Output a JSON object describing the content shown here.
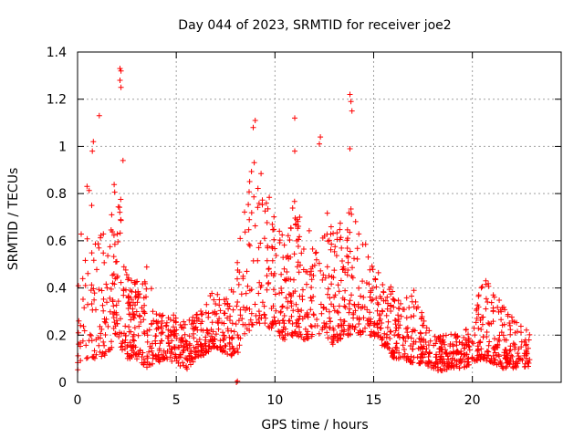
{
  "chart_data": {
    "type": "scatter",
    "title": "Day 044 of 2023, SRMTID for receiver joe2",
    "xlabel": "GPS time / hours",
    "ylabel": "SRMTID / TECUs",
    "xlim": [
      0,
      24.5
    ],
    "ylim": [
      0,
      1.4
    ],
    "xticks": [
      0,
      5,
      10,
      15,
      20
    ],
    "yticks": [
      0,
      0.2,
      0.4,
      0.6,
      0.8,
      1,
      1.2,
      1.4
    ],
    "ytick_labels": [
      "0",
      "0.2",
      "0.4",
      "0.6",
      "0.8",
      "1",
      "1.2",
      "1.4"
    ],
    "grid": true,
    "marker": "+",
    "color": "#ff0000",
    "envelope": [
      [
        0.0,
        0.05,
        0.62
      ],
      [
        0.5,
        0.1,
        0.9
      ],
      [
        1.0,
        0.1,
        0.75
      ],
      [
        1.5,
        0.12,
        0.6
      ],
      [
        2.0,
        0.18,
        0.95
      ],
      [
        2.5,
        0.1,
        0.5
      ],
      [
        3.0,
        0.1,
        0.45
      ],
      [
        3.5,
        0.06,
        0.5
      ],
      [
        4.0,
        0.08,
        0.35
      ],
      [
        4.5,
        0.1,
        0.3
      ],
      [
        5.0,
        0.08,
        0.28
      ],
      [
        5.5,
        0.05,
        0.25
      ],
      [
        6.0,
        0.1,
        0.3
      ],
      [
        6.5,
        0.12,
        0.35
      ],
      [
        7.0,
        0.15,
        0.4
      ],
      [
        7.5,
        0.12,
        0.35
      ],
      [
        8.0,
        0.1,
        0.45
      ],
      [
        8.5,
        0.2,
        0.8
      ],
      [
        9.0,
        0.25,
        1.0
      ],
      [
        9.5,
        0.25,
        0.85
      ],
      [
        10.0,
        0.2,
        0.7
      ],
      [
        10.5,
        0.18,
        0.6
      ],
      [
        11.0,
        0.2,
        0.8
      ],
      [
        11.5,
        0.18,
        0.6
      ],
      [
        12.0,
        0.2,
        0.7
      ],
      [
        12.5,
        0.2,
        0.75
      ],
      [
        13.0,
        0.15,
        0.65
      ],
      [
        13.5,
        0.2,
        0.7
      ],
      [
        14.0,
        0.2,
        0.75
      ],
      [
        14.5,
        0.2,
        0.65
      ],
      [
        15.0,
        0.2,
        0.5
      ],
      [
        15.5,
        0.15,
        0.45
      ],
      [
        16.0,
        0.1,
        0.4
      ],
      [
        16.5,
        0.1,
        0.35
      ],
      [
        17.0,
        0.08,
        0.4
      ],
      [
        17.5,
        0.08,
        0.3
      ],
      [
        18.0,
        0.05,
        0.2
      ],
      [
        18.5,
        0.05,
        0.2
      ],
      [
        19.0,
        0.06,
        0.22
      ],
      [
        19.5,
        0.06,
        0.22
      ],
      [
        20.0,
        0.08,
        0.25
      ],
      [
        20.5,
        0.1,
        0.45
      ],
      [
        21.0,
        0.08,
        0.4
      ],
      [
        21.5,
        0.06,
        0.35
      ],
      [
        22.0,
        0.06,
        0.3
      ],
      [
        22.5,
        0.06,
        0.25
      ],
      [
        22.9,
        0.06,
        0.22
      ]
    ],
    "annotated_points": [
      [
        2.15,
        1.33
      ],
      [
        2.2,
        1.32
      ],
      [
        2.15,
        1.28
      ],
      [
        2.2,
        1.25
      ],
      [
        13.8,
        1.22
      ],
      [
        13.85,
        1.19
      ],
      [
        13.9,
        1.15
      ],
      [
        9.0,
        1.11
      ],
      [
        8.9,
        1.08
      ],
      [
        11.0,
        1.12
      ],
      [
        12.3,
        1.04
      ],
      [
        12.25,
        1.01
      ],
      [
        0.8,
        1.02
      ],
      [
        0.75,
        0.98
      ],
      [
        1.1,
        1.13
      ],
      [
        2.3,
        0.94
      ],
      [
        13.8,
        0.99
      ],
      [
        11.0,
        0.98
      ],
      [
        8.05,
        0.0
      ],
      [
        8.1,
        0.005
      ]
    ],
    "point_count": 1700,
    "seed": 44
  }
}
